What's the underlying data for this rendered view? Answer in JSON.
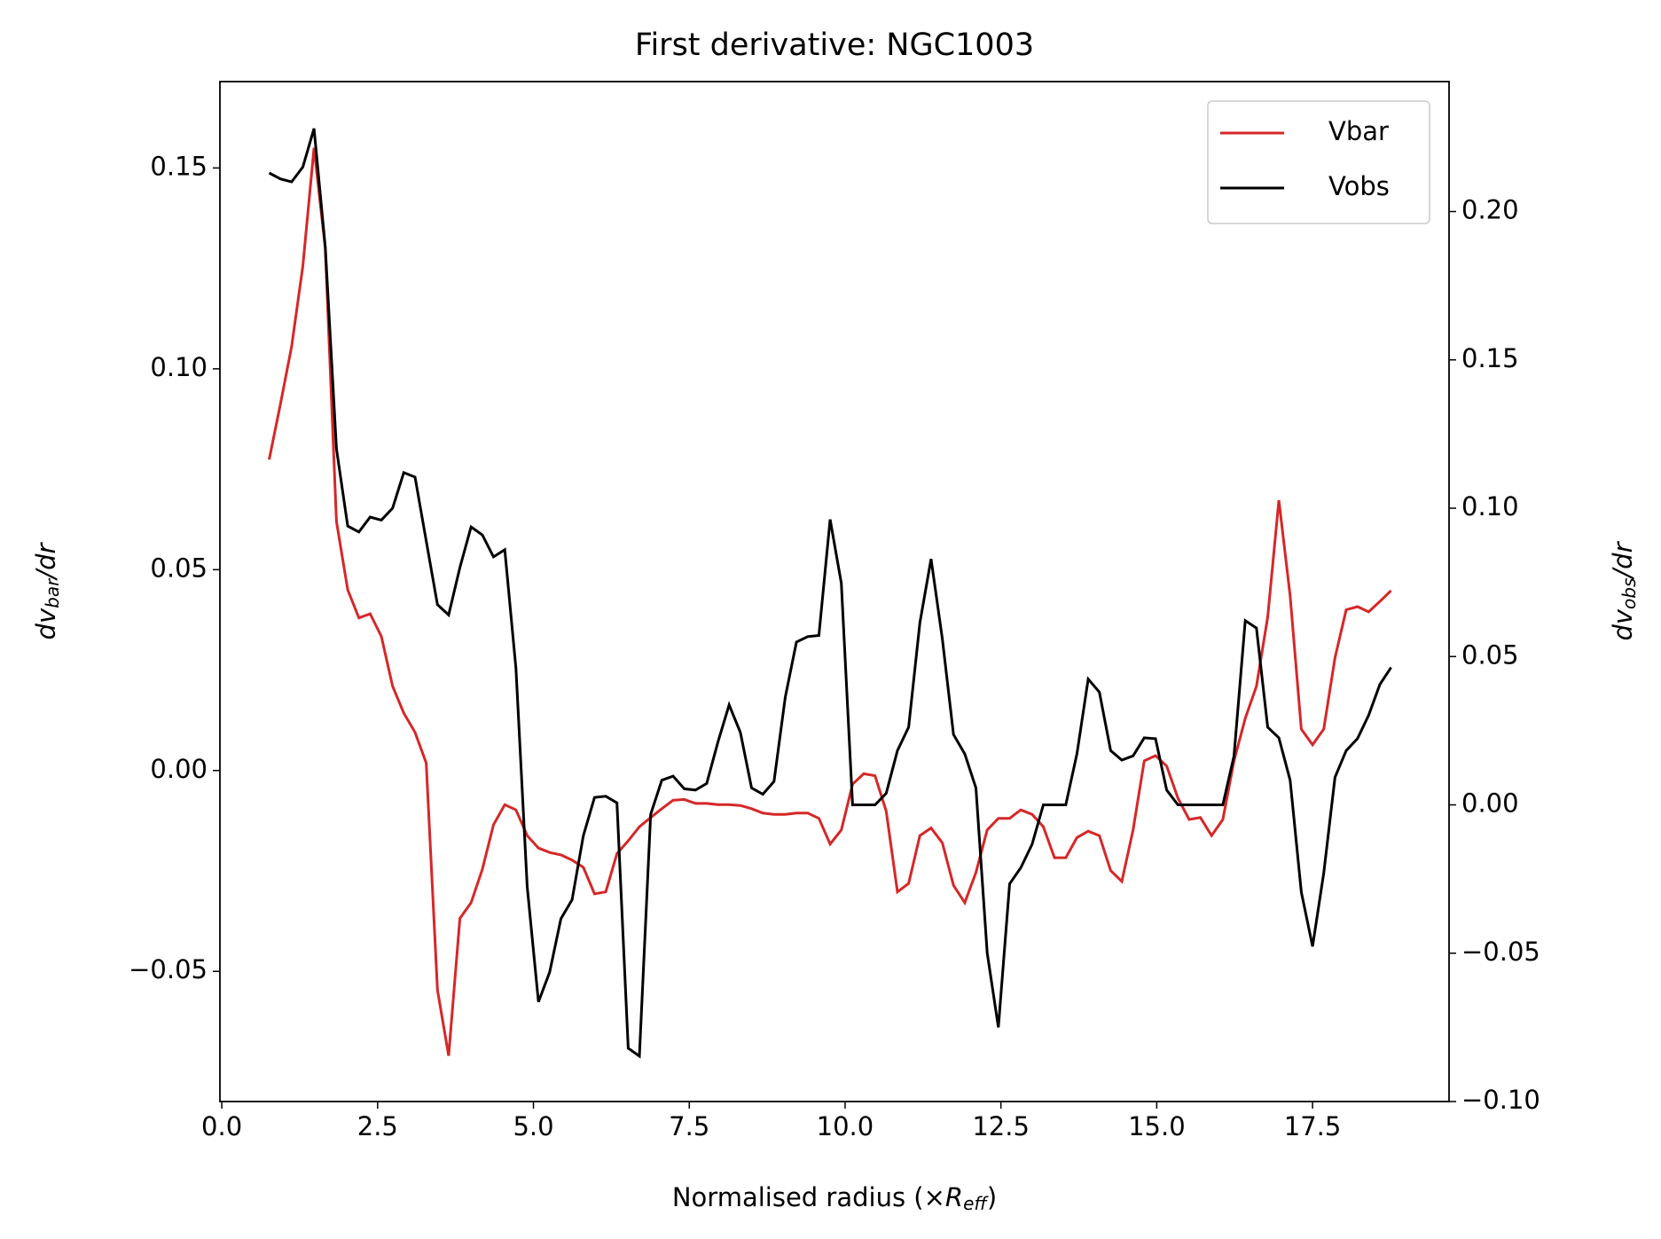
{
  "chart_data": {
    "type": "line",
    "title": "First derivative: NGC1003",
    "xlabel": {
      "main": "Normalised radius (×",
      "italic": "R",
      "sub": "eff",
      "tail": ")"
    },
    "ylabel": {
      "main": "dv",
      "sub": "bar",
      "tail": "/dr"
    },
    "y2label": {
      "main": "dv",
      "sub": "obs",
      "tail": "/dr"
    },
    "legend": "upper right",
    "xlim": [
      -0.03,
      19.69
    ],
    "ylim": [
      -0.0824,
      0.1715
    ],
    "y2lim": [
      -0.1,
      0.2438
    ],
    "xticks": [
      {
        "value": 0,
        "label": "0.0"
      },
      {
        "value": 2.5,
        "label": "2.5"
      },
      {
        "value": 5,
        "label": "5.0"
      },
      {
        "value": 7.5,
        "label": "7.5"
      },
      {
        "value": 10,
        "label": "10.0"
      },
      {
        "value": 12.5,
        "label": "12.5"
      },
      {
        "value": 15,
        "label": "15.0"
      },
      {
        "value": 17.5,
        "label": "17.5"
      }
    ],
    "yticks": [
      {
        "value": -0.05,
        "label": "−0.05"
      },
      {
        "value": 0,
        "label": "0.00"
      },
      {
        "value": 0.05,
        "label": "0.05"
      },
      {
        "value": 0.1,
        "label": "0.10"
      },
      {
        "value": 0.15,
        "label": "0.15"
      }
    ],
    "y2ticks": [
      {
        "value": -0.1,
        "label": "−0.10"
      },
      {
        "value": -0.05,
        "label": "−0.05"
      },
      {
        "value": 0,
        "label": "0.00"
      },
      {
        "value": 0.05,
        "label": "0.05"
      },
      {
        "value": 0.1,
        "label": "0.10"
      },
      {
        "value": 0.15,
        "label": "0.15"
      },
      {
        "value": 0.2,
        "label": "0.20"
      }
    ],
    "x": [
      0.76,
      0.94,
      1.12,
      1.3,
      1.48,
      1.66,
      1.84,
      2.02,
      2.2,
      2.38,
      2.56,
      2.74,
      2.92,
      3.1,
      3.28,
      3.46,
      3.64,
      3.82,
      4.0,
      4.18,
      4.36,
      4.54,
      4.72,
      4.9,
      5.08,
      5.26,
      5.44,
      5.62,
      5.8,
      5.98,
      6.16,
      6.34,
      6.52,
      6.7,
      6.88,
      7.06,
      7.24,
      7.42,
      7.6,
      7.78,
      7.96,
      8.14,
      8.32,
      8.5,
      8.68,
      8.86,
      9.04,
      9.22,
      9.4,
      9.58,
      9.76,
      9.94,
      10.12,
      10.3,
      10.48,
      10.66,
      10.84,
      11.02,
      11.2,
      11.38,
      11.56,
      11.74,
      11.92,
      12.1,
      12.28,
      12.46,
      12.64,
      12.82,
      13.0,
      13.18,
      13.36,
      13.54,
      13.72,
      13.9,
      14.08,
      14.26,
      14.44,
      14.62,
      14.8,
      14.98,
      15.16,
      15.34,
      15.52,
      15.7,
      15.88,
      16.06,
      16.24,
      16.42,
      16.6,
      16.78,
      16.96,
      17.14,
      17.32,
      17.5,
      17.68,
      17.86,
      18.04,
      18.22,
      18.4,
      18.58,
      18.76
    ],
    "series": [
      {
        "name": "Vbar",
        "color": "#d62728",
        "values": [
          0.0774,
          0.0912,
          0.1055,
          0.1256,
          0.155,
          0.13,
          0.062,
          0.045,
          0.038,
          0.039,
          0.0334,
          0.021,
          0.0143,
          0.0095,
          0.0019,
          -0.0546,
          -0.071,
          -0.0368,
          -0.0329,
          -0.0246,
          -0.0135,
          -0.0085,
          -0.0098,
          -0.0162,
          -0.0193,
          -0.0204,
          -0.021,
          -0.0223,
          -0.0241,
          -0.0307,
          -0.0302,
          -0.0207,
          -0.0175,
          -0.014,
          -0.0117,
          -0.0095,
          -0.0074,
          -0.0072,
          -0.0082,
          -0.0082,
          -0.0085,
          -0.0085,
          -0.0087,
          -0.0095,
          -0.0106,
          -0.0109,
          -0.0109,
          -0.0106,
          -0.0106,
          -0.0119,
          -0.0183,
          -0.0148,
          -0.0034,
          -0.0008,
          -0.0013,
          -0.0101,
          -0.0302,
          -0.0281,
          -0.0162,
          -0.0143,
          -0.018,
          -0.0286,
          -0.0329,
          -0.0254,
          -0.0148,
          -0.0119,
          -0.0119,
          -0.0098,
          -0.0109,
          -0.014,
          -0.0217,
          -0.0217,
          -0.0167,
          -0.0151,
          -0.0162,
          -0.0249,
          -0.0276,
          -0.0148,
          0.0024,
          0.0037,
          0.0011,
          -0.0069,
          -0.0122,
          -0.0117,
          -0.0162,
          -0.0122,
          0.0024,
          0.013,
          0.021,
          0.0382,
          0.0673,
          0.0435,
          0.0103,
          0.0064,
          0.0103,
          0.0281,
          0.04,
          0.0408,
          0.0395,
          0.0421,
          0.0448
        ]
      },
      {
        "name": "Vobs",
        "color": "#000000",
        "axis": "y2",
        "values": [
          0.213,
          0.211,
          0.21,
          0.215,
          0.228,
          0.188,
          0.12,
          0.094,
          0.092,
          0.097,
          0.096,
          0.1,
          0.112,
          0.1105,
          0.089,
          0.0675,
          0.064,
          0.08,
          0.0937,
          0.091,
          0.0836,
          0.086,
          0.046,
          -0.0276,
          -0.0664,
          -0.0564,
          -0.0384,
          -0.032,
          -0.0104,
          0.0025,
          0.0029,
          0.0007,
          -0.082,
          -0.0847,
          -0.0032,
          0.0083,
          0.0097,
          0.0054,
          0.005,
          0.0072,
          0.0212,
          0.0337,
          0.0244,
          0.0057,
          0.0036,
          0.0079,
          0.0363,
          0.0549,
          0.0567,
          0.0571,
          0.0962,
          0.0747,
          0.0,
          0.0,
          0.0,
          0.0039,
          0.0183,
          0.0262,
          0.0614,
          0.0829,
          0.056,
          0.0237,
          0.0172,
          0.0057,
          -0.0499,
          -0.075,
          -0.0266,
          -0.0212,
          -0.0133,
          0.0,
          0.0,
          0.0,
          0.0172,
          0.0424,
          0.038,
          0.0183,
          0.0151,
          0.0165,
          0.0226,
          0.0223,
          0.005,
          0.0,
          0.0,
          0.0,
          0.0,
          0.0,
          0.0165,
          0.0621,
          0.0596,
          0.0262,
          0.0226,
          0.0083,
          -0.0294,
          -0.0477,
          -0.023,
          0.0093,
          0.0183,
          0.0223,
          0.0302,
          0.0406,
          0.0463
        ]
      }
    ]
  }
}
